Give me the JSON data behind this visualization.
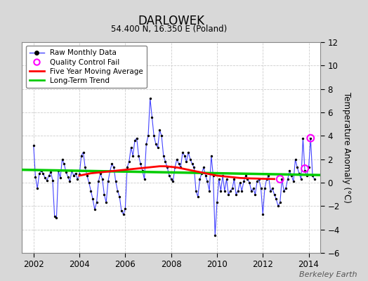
{
  "title": "DARLOWEK",
  "subtitle": "54.400 N, 16.350 E (Poland)",
  "ylabel": "Temperature Anomaly (°C)",
  "ylim": [
    -6,
    12
  ],
  "yticks": [
    -6,
    -4,
    -2,
    0,
    2,
    4,
    6,
    8,
    10,
    12
  ],
  "xlim": [
    2001.5,
    2014.5
  ],
  "xticks": [
    2002,
    2004,
    2006,
    2008,
    2010,
    2012,
    2014
  ],
  "fig_bg_color": "#d8d8d8",
  "plot_bg_color": "#ffffff",
  "raw_line_color": "#4444ff",
  "raw_marker_color": "#000000",
  "ma_color": "#ff0000",
  "trend_color": "#00cc00",
  "qc_color": "#ff00ff",
  "watermark": "Berkeley Earth",
  "raw_data": {
    "times": [
      2002.0,
      2002.083,
      2002.167,
      2002.25,
      2002.333,
      2002.417,
      2002.5,
      2002.583,
      2002.667,
      2002.75,
      2002.833,
      2002.917,
      2003.0,
      2003.083,
      2003.167,
      2003.25,
      2003.333,
      2003.417,
      2003.5,
      2003.583,
      2003.667,
      2003.75,
      2003.833,
      2003.917,
      2004.0,
      2004.083,
      2004.167,
      2004.25,
      2004.333,
      2004.417,
      2004.5,
      2004.583,
      2004.667,
      2004.75,
      2004.833,
      2004.917,
      2005.0,
      2005.083,
      2005.167,
      2005.25,
      2005.333,
      2005.417,
      2005.5,
      2005.583,
      2005.667,
      2005.75,
      2005.833,
      2005.917,
      2006.0,
      2006.083,
      2006.167,
      2006.25,
      2006.333,
      2006.417,
      2006.5,
      2006.583,
      2006.667,
      2006.75,
      2006.833,
      2006.917,
      2007.0,
      2007.083,
      2007.167,
      2007.25,
      2007.333,
      2007.417,
      2007.5,
      2007.583,
      2007.667,
      2007.75,
      2007.833,
      2007.917,
      2008.0,
      2008.083,
      2008.167,
      2008.25,
      2008.333,
      2008.417,
      2008.5,
      2008.583,
      2008.667,
      2008.75,
      2008.833,
      2008.917,
      2009.0,
      2009.083,
      2009.167,
      2009.25,
      2009.333,
      2009.417,
      2009.5,
      2009.583,
      2009.667,
      2009.75,
      2009.833,
      2009.917,
      2010.0,
      2010.083,
      2010.167,
      2010.25,
      2010.333,
      2010.417,
      2010.5,
      2010.583,
      2010.667,
      2010.75,
      2010.833,
      2010.917,
      2011.0,
      2011.083,
      2011.167,
      2011.25,
      2011.333,
      2011.417,
      2011.5,
      2011.583,
      2011.667,
      2011.75,
      2011.833,
      2011.917,
      2012.0,
      2012.083,
      2012.167,
      2012.25,
      2012.333,
      2012.417,
      2012.5,
      2012.583,
      2012.667,
      2012.75,
      2012.833,
      2012.917,
      2013.0,
      2013.083,
      2013.167,
      2013.25,
      2013.333,
      2013.417,
      2013.5,
      2013.583,
      2013.667,
      2013.75,
      2013.833,
      2013.917,
      2014.0,
      2014.083,
      2014.167,
      2014.25
    ],
    "values": [
      3.2,
      0.5,
      -0.5,
      0.8,
      1.0,
      0.8,
      0.4,
      0.2,
      0.6,
      0.9,
      0.2,
      -2.9,
      -3.0,
      1.0,
      0.4,
      2.0,
      1.6,
      0.9,
      0.5,
      0.1,
      1.0,
      0.6,
      0.8,
      0.3,
      0.7,
      2.3,
      2.6,
      1.3,
      0.6,
      0.0,
      -0.7,
      -1.4,
      -2.3,
      -1.7,
      0.1,
      0.8,
      0.3,
      -1.0,
      -1.7,
      0.1,
      1.0,
      1.6,
      1.3,
      0.1,
      -0.7,
      -1.2,
      -2.4,
      -2.7,
      -2.2,
      1.3,
      1.8,
      3.0,
      2.3,
      3.6,
      3.8,
      2.3,
      1.6,
      1.0,
      0.3,
      3.3,
      4.0,
      7.2,
      5.6,
      4.0,
      3.3,
      3.0,
      4.5,
      4.0,
      2.3,
      1.8,
      1.3,
      0.6,
      0.3,
      0.1,
      1.3,
      2.0,
      1.6,
      1.3,
      2.6,
      2.3,
      1.8,
      2.6,
      2.0,
      1.6,
      1.3,
      -0.7,
      -1.2,
      0.3,
      0.8,
      1.3,
      0.6,
      0.1,
      -0.7,
      2.3,
      0.6,
      -4.5,
      -1.7,
      0.3,
      -0.7,
      0.6,
      -0.7,
      0.3,
      -1.0,
      -0.7,
      -0.5,
      0.3,
      -1.0,
      -0.7,
      0.0,
      -0.7,
      0.1,
      0.6,
      0.3,
      0.0,
      -0.7,
      -0.5,
      -1.0,
      0.1,
      0.3,
      -0.5,
      -2.7,
      -0.5,
      0.3,
      0.6,
      -0.7,
      -0.5,
      -1.0,
      -1.4,
      -2.0,
      -1.7,
      0.3,
      -0.7,
      -0.5,
      0.3,
      1.0,
      0.6,
      0.1,
      2.0,
      1.3,
      0.8,
      0.3,
      3.8,
      1.0,
      0.6,
      1.3,
      3.8,
      0.6,
      0.3
    ]
  },
  "qc_fail_points": [
    {
      "time": 2012.75,
      "value": 0.3
    },
    {
      "time": 2013.833,
      "value": 1.2
    },
    {
      "time": 2014.083,
      "value": 3.8
    }
  ],
  "moving_avg": {
    "times": [
      2004.0,
      2004.25,
      2004.5,
      2004.75,
      2005.0,
      2005.25,
      2005.5,
      2005.75,
      2006.0,
      2006.25,
      2006.5,
      2006.75,
      2007.0,
      2007.25,
      2007.5,
      2007.75,
      2008.0,
      2008.25,
      2008.5,
      2008.75,
      2009.0,
      2009.25,
      2009.5,
      2009.75,
      2010.0,
      2010.25,
      2010.5,
      2010.75,
      2011.0,
      2011.25,
      2011.5,
      2011.75,
      2012.0,
      2012.25,
      2012.5
    ],
    "values": [
      0.6,
      0.7,
      0.8,
      0.85,
      0.9,
      0.95,
      1.0,
      1.05,
      1.1,
      1.15,
      1.2,
      1.25,
      1.3,
      1.35,
      1.4,
      1.4,
      1.35,
      1.3,
      1.2,
      1.1,
      1.0,
      0.9,
      0.8,
      0.7,
      0.6,
      0.55,
      0.5,
      0.45,
      0.4,
      0.38,
      0.36,
      0.35,
      0.33,
      0.32,
      0.31
    ]
  },
  "trend": {
    "times": [
      2001.5,
      2014.5
    ],
    "values": [
      1.1,
      0.65
    ]
  }
}
